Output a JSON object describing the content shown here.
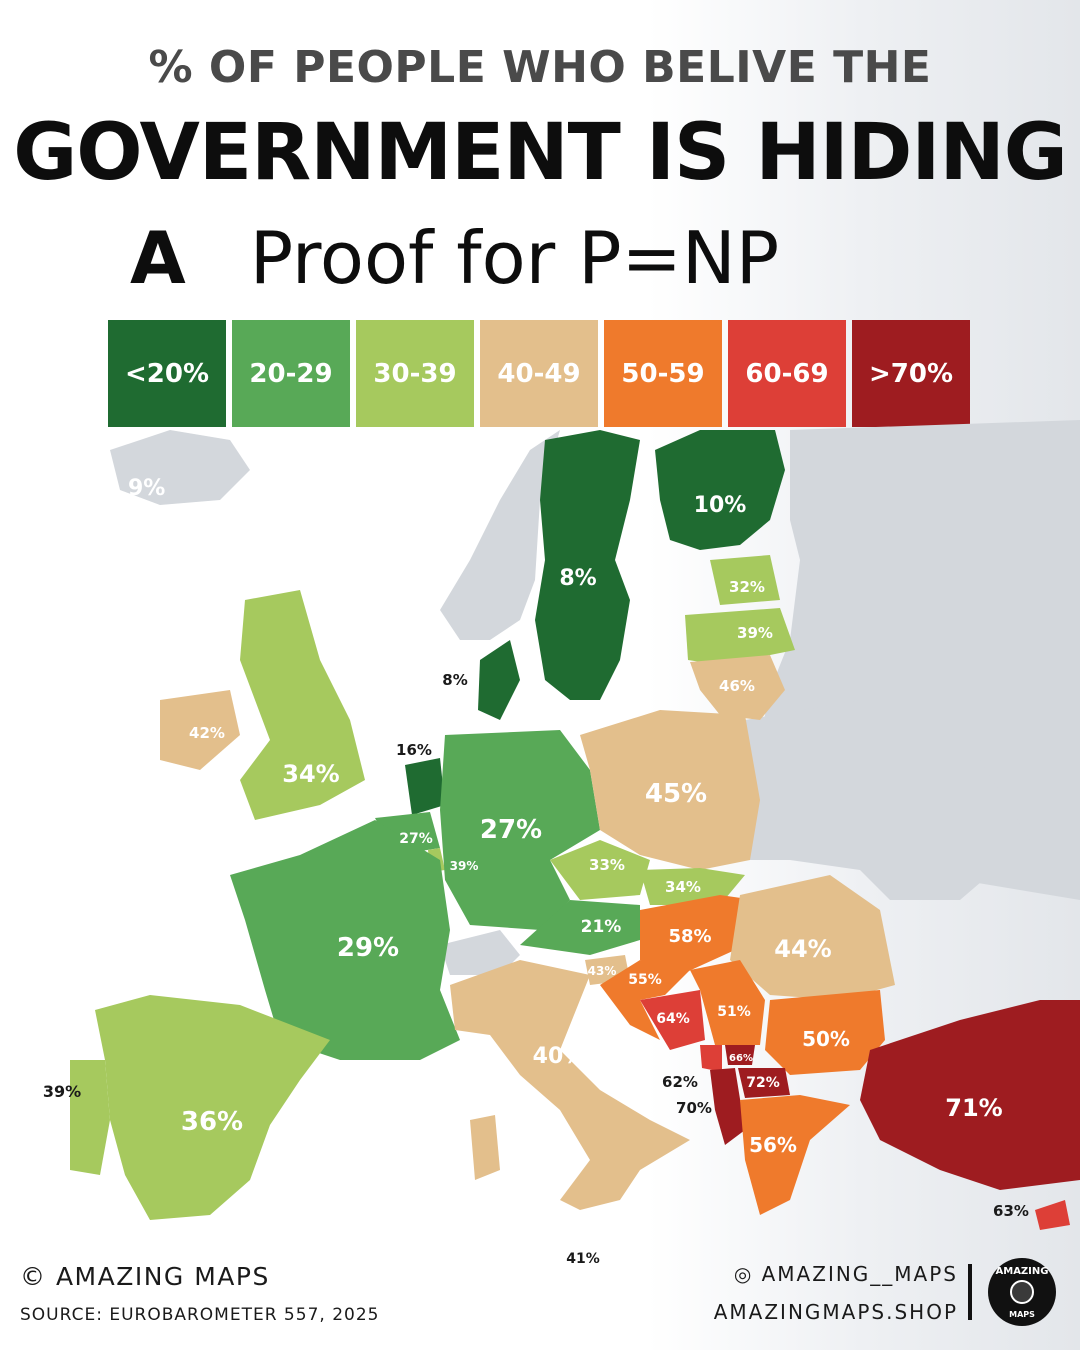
{
  "header": {
    "subtitle": "% OF PEOPLE WHO BELIVE THE",
    "title": "GOVERNMENT IS HIDING",
    "title2_a": "A",
    "title2_rest": "Proof for P=NP"
  },
  "legend": [
    {
      "label": "<20%",
      "color": "#1f6b31"
    },
    {
      "label": "20-29",
      "color": "#58a957"
    },
    {
      "label": "30-39",
      "color": "#a6c95e"
    },
    {
      "label": "40-49",
      "color": "#e3bf8c"
    },
    {
      "label": "50-59",
      "color": "#ef7a2c"
    },
    {
      "label": "60-69",
      "color": "#dd3f37"
    },
    {
      "label": ">70%",
      "color": "#9e1c20"
    }
  ],
  "countries": [
    {
      "id": "iceland",
      "value": "9%"
    },
    {
      "id": "sweden",
      "value": "8%"
    },
    {
      "id": "finland",
      "value": "10%"
    },
    {
      "id": "estonia",
      "value": "32%"
    },
    {
      "id": "latvia",
      "value": "39%"
    },
    {
      "id": "lithuania",
      "value": "46%"
    },
    {
      "id": "denmark",
      "value": "8%"
    },
    {
      "id": "ireland",
      "value": "42%"
    },
    {
      "id": "uk",
      "value": "34%"
    },
    {
      "id": "netherlands",
      "value": "16%"
    },
    {
      "id": "belgium",
      "value": "27%"
    },
    {
      "id": "luxembourg",
      "value": "39%"
    },
    {
      "id": "germany",
      "value": "27%"
    },
    {
      "id": "poland",
      "value": "45%"
    },
    {
      "id": "czechia",
      "value": "33%"
    },
    {
      "id": "slovakia",
      "value": "34%"
    },
    {
      "id": "austria",
      "value": "21%"
    },
    {
      "id": "hungary",
      "value": "58%"
    },
    {
      "id": "romania",
      "value": "44%"
    },
    {
      "id": "france",
      "value": "29%"
    },
    {
      "id": "slovenia",
      "value": "43%"
    },
    {
      "id": "croatia",
      "value": "55%"
    },
    {
      "id": "bosnia",
      "value": "64%"
    },
    {
      "id": "serbia",
      "value": "51%"
    },
    {
      "id": "bulgaria",
      "value": "50%"
    },
    {
      "id": "kosovo",
      "value": "66%"
    },
    {
      "id": "montenegro",
      "value": "62%"
    },
    {
      "id": "albania",
      "value": "70%"
    },
    {
      "id": "north_macedonia",
      "value": "72%"
    },
    {
      "id": "italy",
      "value": "40%"
    },
    {
      "id": "malta",
      "value": "41%"
    },
    {
      "id": "spain",
      "value": "36%"
    },
    {
      "id": "portugal",
      "value": "39%"
    },
    {
      "id": "greece",
      "value": "56%"
    },
    {
      "id": "turkey",
      "value": "71%"
    },
    {
      "id": "cyprus",
      "value": "63%"
    }
  ],
  "footer": {
    "copyright": "© AMAZING MAPS",
    "source": "SOURCE: EUROBAROMETER 557, 2025",
    "instagram": "◎ AMAZING__MAPS",
    "shop": "AMAZINGMAPS.SHOP",
    "badge_top": "AMAZING",
    "badge_bottom": "MAPS"
  }
}
